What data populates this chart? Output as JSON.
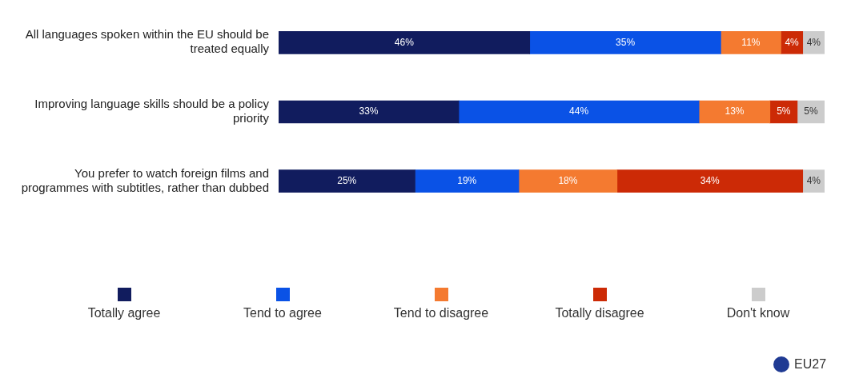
{
  "chart_data": {
    "type": "bar",
    "orientation": "horizontal",
    "stacked": true,
    "legend": "bottom",
    "tick_labels": "y",
    "categories": [
      "All languages spoken within the EU should be treated equally",
      "Improving language skills should be a policy priority",
      "You prefer to watch foreign films and programmes with subtitles, rather than dubbed"
    ],
    "series": [
      {
        "name": "Totally agree",
        "color": "#111c5e",
        "values": [
          46,
          33,
          25
        ],
        "value_labels": [
          "46%",
          "33%",
          "25%"
        ]
      },
      {
        "name": "Tend to agree",
        "color": "#0a52e6",
        "values": [
          35,
          44,
          19
        ],
        "value_labels": [
          "35%",
          "44%",
          "19%"
        ]
      },
      {
        "name": "Tend to disagree",
        "color": "#f47a30",
        "values": [
          11,
          13,
          18
        ],
        "value_labels": [
          "11%",
          "13%",
          "18%"
        ]
      },
      {
        "name": "Totally disagree",
        "color": "#cc2a06",
        "values": [
          4,
          5,
          34
        ],
        "value_labels": [
          "4%",
          "5%",
          "34%"
        ]
      },
      {
        "name": "Don't know",
        "color": "#cccccc",
        "values": [
          4,
          5,
          4
        ],
        "value_labels": [
          "4%",
          "5%",
          "4%"
        ]
      }
    ],
    "annotations": [
      "EU27"
    ]
  }
}
